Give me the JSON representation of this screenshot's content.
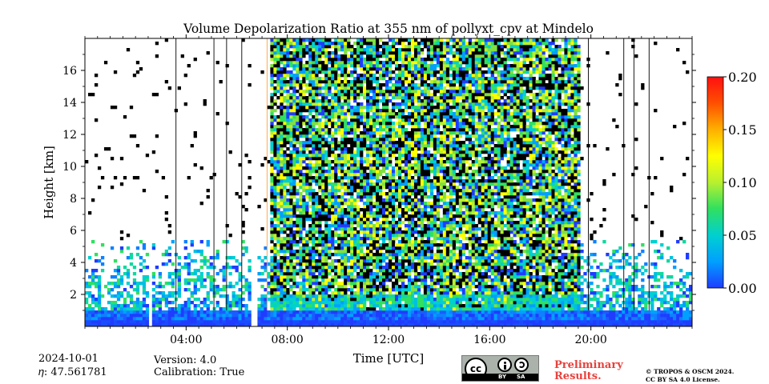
{
  "chart_data": {
    "type": "heatmap",
    "title": "Volume Depolarization Ratio at 355 nm of pollyxt_cpv at Mindelo",
    "xlabel": "Time [UTC]",
    "ylabel": "Height [km]",
    "x_ticks": [
      "04:00",
      "08:00",
      "12:00",
      "16:00",
      "20:00"
    ],
    "x_tick_hours": [
      4,
      8,
      12,
      16,
      20
    ],
    "xlim_hours": [
      0,
      24
    ],
    "y_ticks": [
      2,
      4,
      6,
      8,
      10,
      12,
      14,
      16
    ],
    "ylim_km": [
      0,
      18
    ],
    "colorbar": {
      "ticks": [
        "0.00",
        "0.05",
        "0.10",
        "0.15",
        "0.20"
      ],
      "values": [
        0.0,
        0.05,
        0.1,
        0.15,
        0.2
      ],
      "range": [
        0,
        0.2
      ],
      "colormap": [
        "#1f3cff",
        "#00a0ff",
        "#00d0d0",
        "#30e060",
        "#b8f030",
        "#ffff00",
        "#ffb000",
        "#ff5000",
        "#ff1010"
      ]
    },
    "layers": {
      "boundary_layer_top_km": 1.0,
      "aerosol_layer_top_km": 5.5,
      "noisy_period_hours": [
        7.3,
        19.6
      ],
      "gaps_hours": [
        [
          2.5,
          2.7
        ],
        [
          6.6,
          6.8
        ]
      ],
      "vertical_marks_hours": [
        3.6,
        5.1,
        5.6,
        6.2,
        7.2,
        19.9,
        21.3,
        21.7,
        22.3
      ]
    }
  },
  "footer": {
    "date": "2024-10-01",
    "eta": "𝜂: 47.561781",
    "version": "Version: 4.0",
    "calibration": "Calibration: True",
    "preliminary_line1": "Preliminary",
    "preliminary_line2": "Results.",
    "copyright_line1": "© TROPOS & OSCM 2024.",
    "copyright_line2": "CC BY SA 4.0 License.",
    "cc_by": "BY",
    "cc_sa": "SA",
    "cc_glyph": "cc"
  }
}
